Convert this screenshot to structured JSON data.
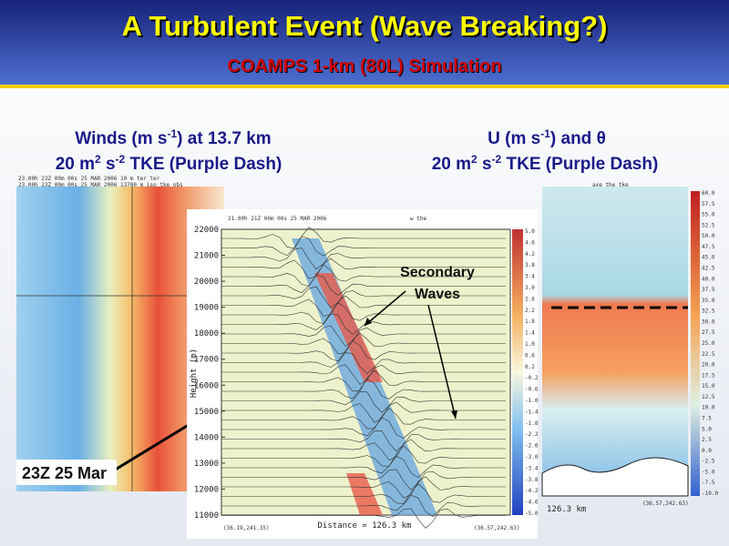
{
  "header": {
    "title": "A Turbulent Event (Wave Breaking?)",
    "subtitle": "COAMPS 1-km (80L) Simulation"
  },
  "left_caption": {
    "line1": [
      "Winds (m s",
      "-1",
      ") at 13.7 km"
    ],
    "line2": [
      "20 m",
      "2",
      " s",
      "-2",
      " TKE (Purple Dash)"
    ]
  },
  "right_caption": {
    "line1": [
      "U (m s",
      "-1",
      ") and θ"
    ],
    "line2": [
      "20 m",
      "2",
      " s",
      "-2",
      " TKE (Purple Dash)"
    ]
  },
  "left_panel": {
    "header_lines": [
      "23.00h 23Z 00m 00s 25 MAR 2006 10 m ter ter",
      "23.00h 23Z 00m 00s 25 MAR 2006 13700 m iso tke obs"
    ],
    "label": "23Z 25 Mar"
  },
  "center_panel": {
    "header": "21.00h 21Z 00m 00s 25 MAR 2006",
    "fields": "w the",
    "y_label": "Height (m)",
    "y_ticks": [
      22000,
      21000,
      20000,
      19000,
      18000,
      17000,
      16000,
      15000,
      14000,
      13000,
      12000,
      11000
    ],
    "colorbar": [
      "5.0",
      "4.6",
      "4.2",
      "3.8",
      "3.4",
      "3.0",
      "2.6",
      "2.2",
      "1.8",
      "1.4",
      "1.0",
      "0.6",
      "0.2",
      "-0.2",
      "-0.6",
      "-1.0",
      "-1.4",
      "-1.8",
      "-2.2",
      "-2.6",
      "-3.0",
      "-3.4",
      "-3.8",
      "-4.2",
      "-4.6",
      "-5.0"
    ],
    "x_label": "Distance = 126.3 km",
    "corner_left": "(36.19,241.35)",
    "corner_right": "(36.57,242.63)",
    "annotation": [
      "Secondary",
      "Waves"
    ]
  },
  "right_panel": {
    "fields": "axe the tke",
    "distance": "126.3 km",
    "corner_right": "(36.57,242.63)",
    "colorbar": [
      "60.0",
      "57.5",
      "55.0",
      "52.5",
      "50.0",
      "47.5",
      "45.0",
      "42.5",
      "40.0",
      "37.5",
      "35.0",
      "32.5",
      "30.0",
      "27.5",
      "25.0",
      "22.5",
      "20.0",
      "17.5",
      "15.0",
      "12.5",
      "10.0",
      "7.5",
      "5.0",
      "2.5",
      "0.0",
      "-2.5",
      "-5.0",
      "-7.5",
      "-10.0"
    ]
  }
}
